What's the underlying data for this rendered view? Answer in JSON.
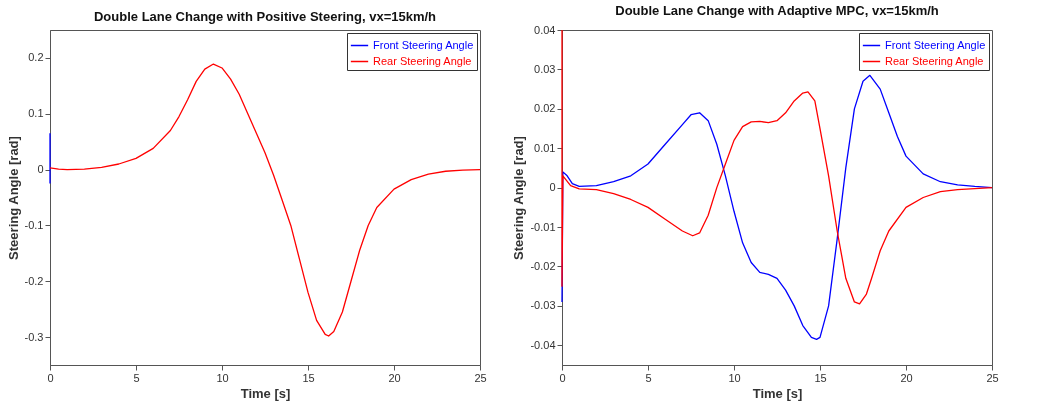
{
  "chart_data": [
    {
      "type": "line",
      "title": "Double Lane Change with Positive Steering, vx=15km/h",
      "xlabel": "Time [s]",
      "ylabel": "Steering Angle [rad]",
      "xlim": [
        0,
        25
      ],
      "xticks": [
        0,
        5,
        10,
        15,
        20,
        25
      ],
      "ylim": [
        -0.35,
        0.25
      ],
      "yticks": [
        -0.3,
        -0.2,
        -0.1,
        0,
        0.1,
        0.2
      ],
      "legend": "top right",
      "series": [
        {
          "name": "Front Steering Angle",
          "color": "#0000ff",
          "x": [
            0,
            0
          ],
          "values": [
            0.065,
            -0.025
          ]
        },
        {
          "name": "Rear Steering Angle",
          "color": "#ff0000",
          "x": [
            0,
            0.5,
            1,
            2,
            3,
            4,
            5,
            6,
            7,
            7.5,
            8,
            8.5,
            9,
            9.5,
            10,
            10.5,
            11,
            11.5,
            12,
            12.5,
            13,
            13.5,
            14,
            14.5,
            15,
            15.5,
            16,
            16.2,
            16.5,
            17,
            17.5,
            18,
            18.5,
            19,
            20,
            21,
            22,
            23,
            24,
            25
          ],
          "values": [
            0.003,
            0.001,
            0,
            0.001,
            0.004,
            0.01,
            0.02,
            0.038,
            0.07,
            0.095,
            0.125,
            0.158,
            0.18,
            0.189,
            0.182,
            0.162,
            0.135,
            0.1,
            0.065,
            0.03,
            -0.01,
            -0.055,
            -0.1,
            -0.16,
            -0.22,
            -0.27,
            -0.295,
            -0.298,
            -0.29,
            -0.255,
            -0.2,
            -0.145,
            -0.1,
            -0.068,
            -0.035,
            -0.018,
            -0.008,
            -0.003,
            -0.001,
            0
          ]
        }
      ]
    },
    {
      "type": "line",
      "title": "Double Lane Change with Adaptive MPC, vx=15km/h",
      "xlabel": "Time [s]",
      "ylabel": "Steering Angle [rad]",
      "xlim": [
        0,
        25
      ],
      "xticks": [
        0,
        5,
        10,
        15,
        20,
        25
      ],
      "ylim": [
        -0.045,
        0.04
      ],
      "yticks": [
        -0.04,
        -0.03,
        -0.02,
        -0.01,
        0,
        0.01,
        0.02,
        0.03,
        0.04
      ],
      "legend": "top right",
      "series": [
        {
          "name": "Front Steering Angle",
          "color": "#0000ff",
          "x": [
            0,
            0.05,
            0.3,
            0.6,
            1,
            2,
            3,
            4,
            5,
            6,
            7,
            7.5,
            8,
            8.5,
            9,
            9.5,
            10,
            10.5,
            11,
            11.5,
            12,
            12.5,
            13,
            13.5,
            14,
            14.5,
            14.8,
            15,
            15.5,
            16,
            16.5,
            17,
            17.5,
            17.9,
            18.5,
            19,
            19.5,
            20,
            21,
            22,
            23,
            24,
            25
          ],
          "values": [
            -0.029,
            0.004,
            0.003,
            0.001,
            0.0003,
            0.0005,
            0.0015,
            0.003,
            0.006,
            0.011,
            0.016,
            0.0185,
            0.019,
            0.017,
            0.011,
            0.003,
            -0.006,
            -0.014,
            -0.019,
            -0.0215,
            -0.022,
            -0.023,
            -0.026,
            -0.03,
            -0.035,
            -0.038,
            -0.0385,
            -0.038,
            -0.03,
            -0.013,
            0.005,
            0.02,
            0.027,
            0.0285,
            0.025,
            0.019,
            0.013,
            0.008,
            0.0035,
            0.0015,
            0.0007,
            0.0003,
            0
          ]
        },
        {
          "name": "Rear Steering Angle",
          "color": "#ff0000",
          "x": [
            0,
            0,
            0.05,
            0.5,
            1,
            2,
            3,
            4,
            5,
            6,
            7,
            7.6,
            8,
            8.5,
            9,
            9.5,
            10,
            10.5,
            11,
            11.5,
            12,
            12.5,
            13,
            13.5,
            14,
            14.3,
            14.7,
            15,
            15.5,
            16,
            16.5,
            17,
            17.3,
            17.7,
            18,
            18.5,
            19,
            20,
            21,
            22,
            23,
            25
          ],
          "values": [
            0.04,
            -0.025,
            0.003,
            0.0005,
            -0.0003,
            -0.0005,
            -0.0015,
            -0.003,
            -0.005,
            -0.008,
            -0.011,
            -0.0122,
            -0.0115,
            -0.007,
            0,
            0.006,
            0.012,
            0.0155,
            0.0167,
            0.0168,
            0.0165,
            0.017,
            0.019,
            0.022,
            0.024,
            0.0243,
            0.022,
            0.015,
            0.003,
            -0.011,
            -0.023,
            -0.029,
            -0.0295,
            -0.027,
            -0.023,
            -0.016,
            -0.011,
            -0.005,
            -0.0025,
            -0.001,
            -0.0005,
            0
          ]
        }
      ]
    }
  ]
}
